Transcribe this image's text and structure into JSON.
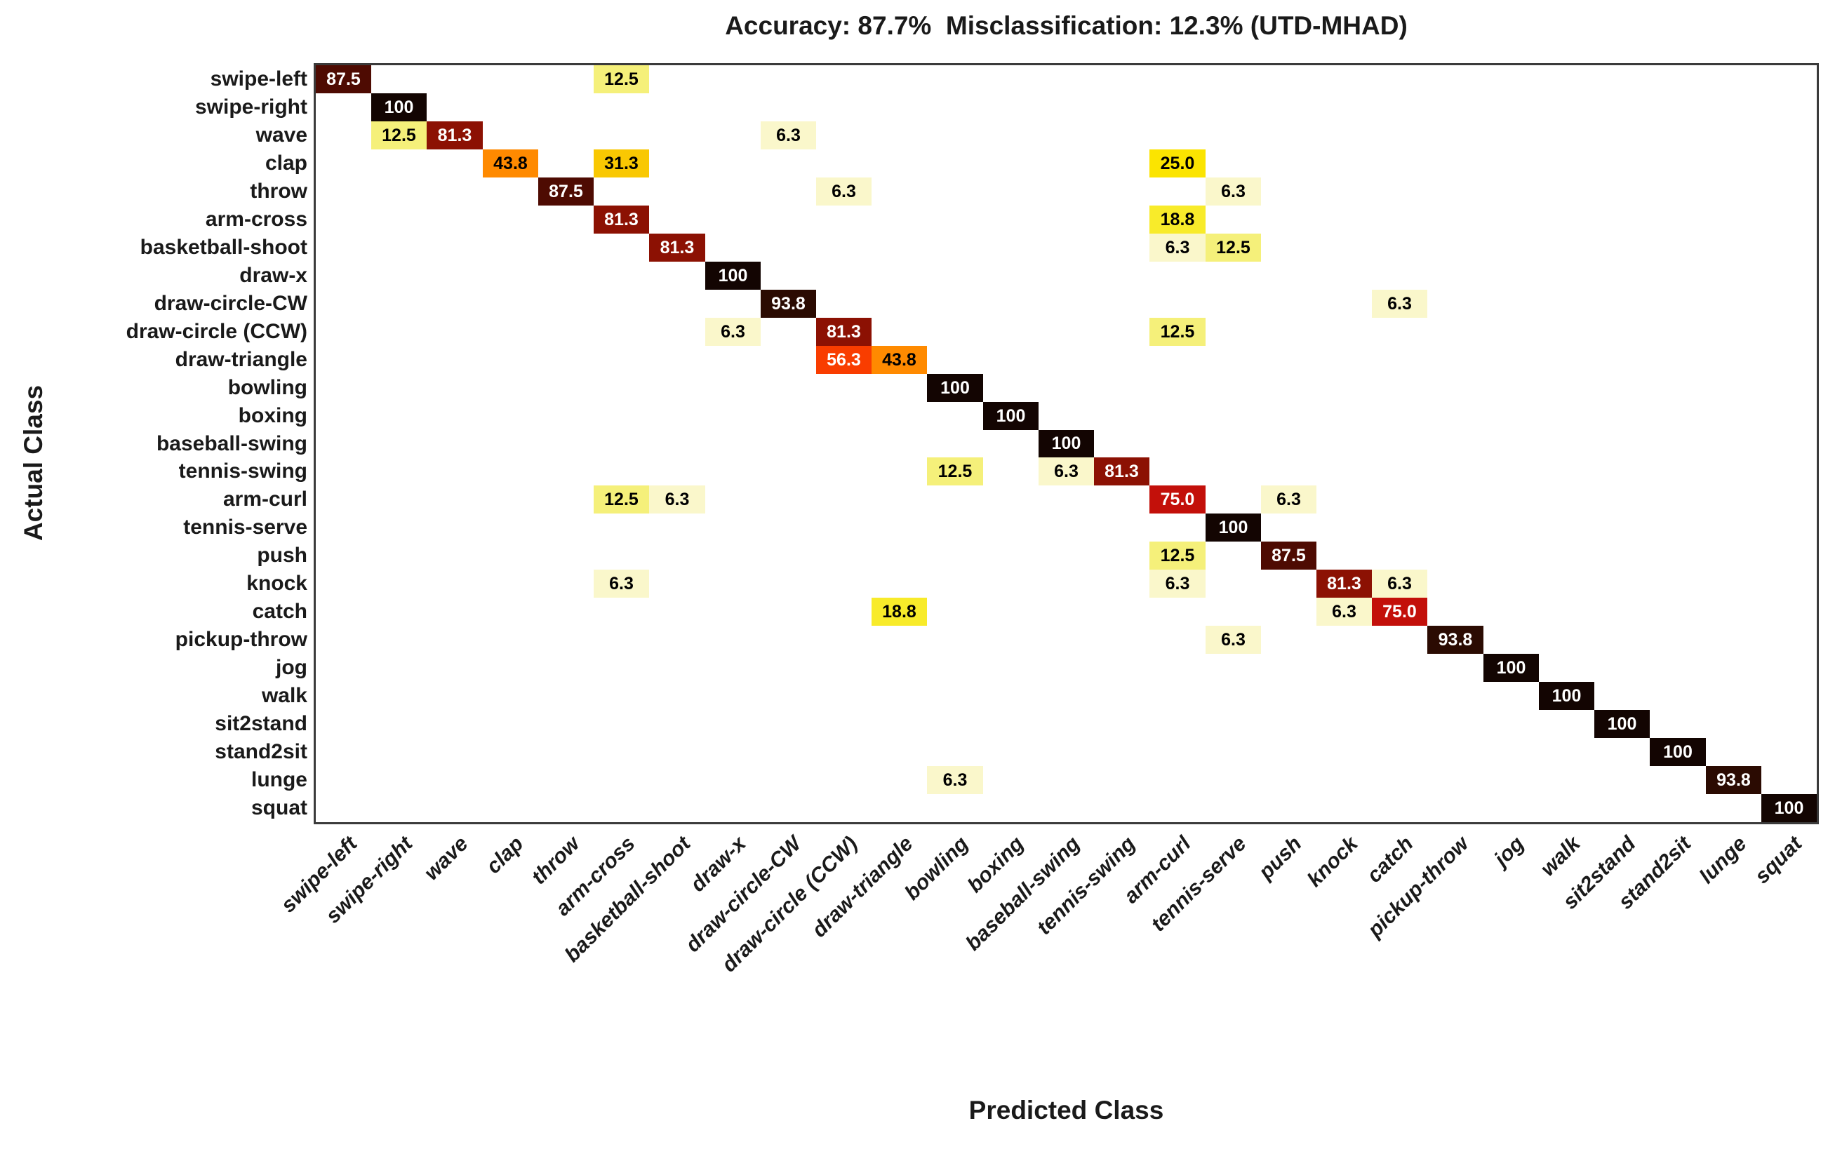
{
  "title": "Accuracy: 87.7%  Misclassification: 12.3% (UTD-MHAD)",
  "chart_data": {
    "type": "heatmap",
    "subtype": "confusion-matrix",
    "title": "Accuracy: 87.7%  Misclassification: 12.3% (UTD-MHAD)",
    "xlabel": "Predicted Class",
    "ylabel": "Actual Class",
    "grid": false,
    "background": "#FFFFFF",
    "border_color": "#3B3B3B",
    "classes": [
      "swipe-left",
      "swipe-right",
      "wave",
      "clap",
      "throw",
      "arm-cross",
      "basketball-shoot",
      "draw-x",
      "draw-circle-CW",
      "draw-circle (CCW)",
      "draw-triangle",
      "bowling",
      "boxing",
      "baseball-swing",
      "tennis-swing",
      "arm-curl",
      "tennis-serve",
      "push",
      "knock",
      "catch",
      "pickup-throw",
      "jog",
      "walk",
      "sit2stand",
      "stand2sit",
      "lunge",
      "squat"
    ],
    "cells": [
      {
        "actual": "swipe-left",
        "predicted": "swipe-left",
        "value": "87.5"
      },
      {
        "actual": "swipe-left",
        "predicted": "arm-cross",
        "value": "12.5"
      },
      {
        "actual": "swipe-right",
        "predicted": "swipe-right",
        "value": "100"
      },
      {
        "actual": "wave",
        "predicted": "swipe-right",
        "value": "12.5"
      },
      {
        "actual": "wave",
        "predicted": "wave",
        "value": "81.3"
      },
      {
        "actual": "wave",
        "predicted": "draw-circle-CW",
        "value": "6.3"
      },
      {
        "actual": "clap",
        "predicted": "clap",
        "value": "43.8"
      },
      {
        "actual": "clap",
        "predicted": "arm-cross",
        "value": "31.3"
      },
      {
        "actual": "clap",
        "predicted": "arm-curl",
        "value": "25.0"
      },
      {
        "actual": "throw",
        "predicted": "throw",
        "value": "87.5"
      },
      {
        "actual": "throw",
        "predicted": "draw-circle (CCW)",
        "value": "6.3"
      },
      {
        "actual": "throw",
        "predicted": "tennis-serve",
        "value": "6.3"
      },
      {
        "actual": "arm-cross",
        "predicted": "arm-cross",
        "value": "81.3"
      },
      {
        "actual": "arm-cross",
        "predicted": "arm-curl",
        "value": "18.8"
      },
      {
        "actual": "basketball-shoot",
        "predicted": "basketball-shoot",
        "value": "81.3"
      },
      {
        "actual": "basketball-shoot",
        "predicted": "arm-curl",
        "value": "6.3"
      },
      {
        "actual": "basketball-shoot",
        "predicted": "tennis-serve",
        "value": "12.5"
      },
      {
        "actual": "draw-x",
        "predicted": "draw-x",
        "value": "100"
      },
      {
        "actual": "draw-circle-CW",
        "predicted": "draw-circle-CW",
        "value": "93.8"
      },
      {
        "actual": "draw-circle-CW",
        "predicted": "catch",
        "value": "6.3"
      },
      {
        "actual": "draw-circle (CCW)",
        "predicted": "draw-x",
        "value": "6.3"
      },
      {
        "actual": "draw-circle (CCW)",
        "predicted": "draw-circle (CCW)",
        "value": "81.3"
      },
      {
        "actual": "draw-circle (CCW)",
        "predicted": "arm-curl",
        "value": "12.5"
      },
      {
        "actual": "draw-triangle",
        "predicted": "draw-circle (CCW)",
        "value": "56.3"
      },
      {
        "actual": "draw-triangle",
        "predicted": "draw-triangle",
        "value": "43.8"
      },
      {
        "actual": "bowling",
        "predicted": "bowling",
        "value": "100"
      },
      {
        "actual": "boxing",
        "predicted": "boxing",
        "value": "100"
      },
      {
        "actual": "baseball-swing",
        "predicted": "baseball-swing",
        "value": "100"
      },
      {
        "actual": "tennis-swing",
        "predicted": "bowling",
        "value": "12.5"
      },
      {
        "actual": "tennis-swing",
        "predicted": "baseball-swing",
        "value": "6.3"
      },
      {
        "actual": "tennis-swing",
        "predicted": "tennis-swing",
        "value": "81.3"
      },
      {
        "actual": "arm-curl",
        "predicted": "arm-cross",
        "value": "12.5"
      },
      {
        "actual": "arm-curl",
        "predicted": "basketball-shoot",
        "value": "6.3"
      },
      {
        "actual": "arm-curl",
        "predicted": "arm-curl",
        "value": "75.0"
      },
      {
        "actual": "arm-curl",
        "predicted": "push",
        "value": "6.3"
      },
      {
        "actual": "tennis-serve",
        "predicted": "tennis-serve",
        "value": "100"
      },
      {
        "actual": "push",
        "predicted": "arm-curl",
        "value": "12.5"
      },
      {
        "actual": "push",
        "predicted": "push",
        "value": "87.5"
      },
      {
        "actual": "knock",
        "predicted": "arm-cross",
        "value": "6.3"
      },
      {
        "actual": "knock",
        "predicted": "arm-curl",
        "value": "6.3"
      },
      {
        "actual": "knock",
        "predicted": "knock",
        "value": "81.3"
      },
      {
        "actual": "knock",
        "predicted": "catch",
        "value": "6.3"
      },
      {
        "actual": "catch",
        "predicted": "draw-triangle",
        "value": "18.8"
      },
      {
        "actual": "catch",
        "predicted": "knock",
        "value": "6.3"
      },
      {
        "actual": "catch",
        "predicted": "catch",
        "value": "75.0"
      },
      {
        "actual": "pickup-throw",
        "predicted": "tennis-serve",
        "value": "6.3"
      },
      {
        "actual": "pickup-throw",
        "predicted": "pickup-throw",
        "value": "93.8"
      },
      {
        "actual": "jog",
        "predicted": "jog",
        "value": "100"
      },
      {
        "actual": "walk",
        "predicted": "walk",
        "value": "100"
      },
      {
        "actual": "sit2stand",
        "predicted": "sit2stand",
        "value": "100"
      },
      {
        "actual": "stand2sit",
        "predicted": "stand2sit",
        "value": "100"
      },
      {
        "actual": "lunge",
        "predicted": "bowling",
        "value": "6.3"
      },
      {
        "actual": "lunge",
        "predicted": "lunge",
        "value": "93.8"
      },
      {
        "actual": "squat",
        "predicted": "squat",
        "value": "100"
      }
    ],
    "value_colors": {
      "100": "#130502",
      "93.8": "#2B0B02",
      "87.5": "#4E0B02",
      "81.3": "#8C1103",
      "75.0": "#C3100A",
      "56.3": "#F93D00",
      "43.8": "#FF8A00",
      "31.3": "#F9C802",
      "25.0": "#FBE400",
      "18.8": "#F8EB2A",
      "12.5": "#F5F07A",
      "6.3": "#FAF7CB"
    },
    "text_color_rule": {
      "threshold": 50,
      "above": "#FFFFFF",
      "below": "#000000"
    }
  }
}
